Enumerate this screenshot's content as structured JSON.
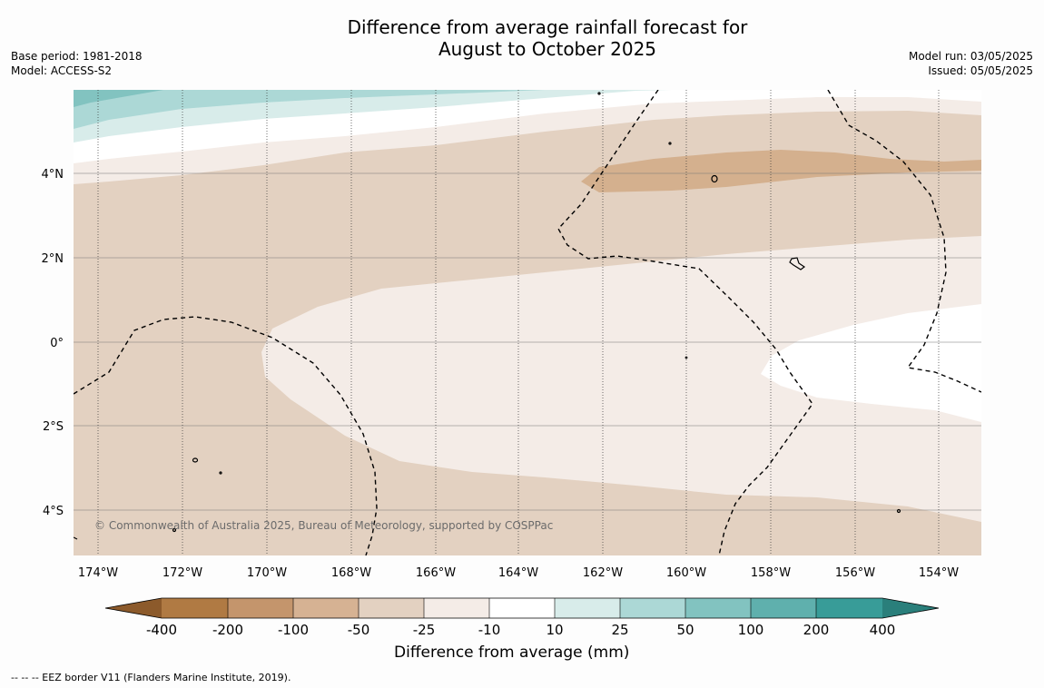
{
  "title": {
    "line1": "Difference from average rainfall forecast for",
    "line2": "August to October 2025"
  },
  "meta_left": {
    "base_period": "Base period: 1981-2018",
    "model": "Model: ACCESS-S2"
  },
  "meta_right": {
    "model_run": "Model run: 03/05/2025",
    "issued": "Issued: 05/05/2025"
  },
  "map": {
    "region": "Central Pacific (Kiribati / Line Islands)",
    "lon_labels": [
      "174°W",
      "172°W",
      "170°W",
      "168°W",
      "166°W",
      "164°W",
      "162°W",
      "160°W",
      "158°W",
      "156°W",
      "154°W"
    ],
    "lat_labels": [
      "4°N",
      "2°N",
      "0°",
      "2°S",
      "4°S"
    ],
    "copyright": "© Commonwealth of Australia 2025, Bureau of Meteorology, supported by COSPPac",
    "border_style": "dashed",
    "coastline_color": "#000000"
  },
  "colorbar": {
    "title": "Difference from average (mm)",
    "tick_labels": [
      "-400",
      "-200",
      "-100",
      "-50",
      "-25",
      "-10",
      "10",
      "25",
      "50",
      "100",
      "200",
      "400"
    ],
    "colors": [
      "#8c5a2b",
      "#b07a43",
      "#c4956c",
      "#d6b293",
      "#e3d1c1",
      "#f4ece7",
      "#ffffff",
      "#d8ecea",
      "#acd8d6",
      "#82c3c0",
      "#5fb0ad",
      "#389c98",
      "#2a7f7b"
    ]
  },
  "footnote": "--  --  -- EEZ border V11 (Flanders Marine Institute, 2019)."
}
